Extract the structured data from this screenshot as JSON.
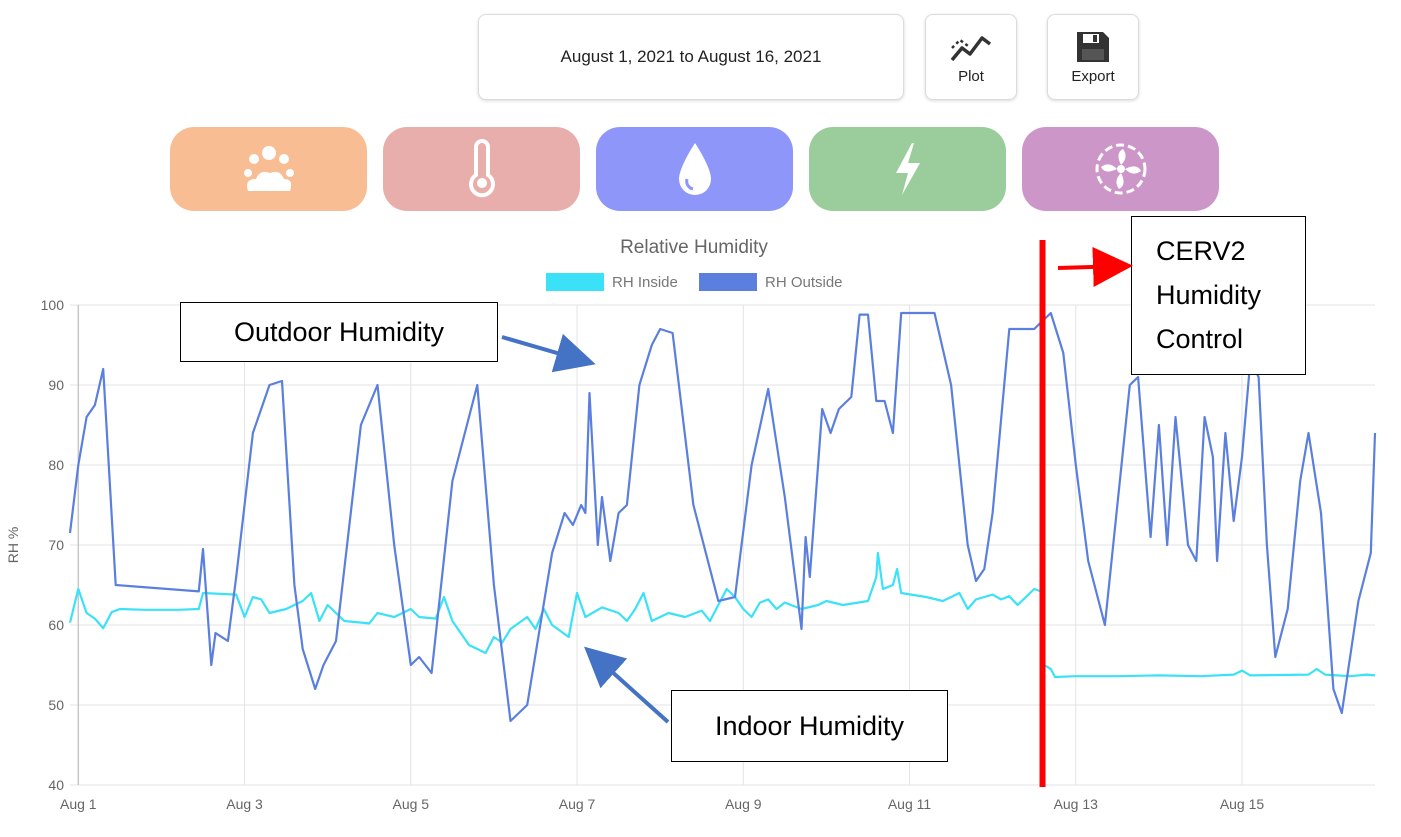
{
  "toolbar": {
    "date_range": "August 1, 2021 to August 16, 2021",
    "plot_label": "Plot",
    "export_label": "Export",
    "plot_icon": "line-chart-icon",
    "export_icon": "floppy-disk-icon"
  },
  "categories": [
    {
      "name": "weather",
      "icon": "weather-icon",
      "color": "#f9bd93"
    },
    {
      "name": "temperature",
      "icon": "thermometer-icon",
      "color": "#e8aeab"
    },
    {
      "name": "humidity",
      "icon": "water-drop-icon",
      "color": "#8e96f9"
    },
    {
      "name": "energy",
      "icon": "lightning-icon",
      "color": "#9acd9b"
    },
    {
      "name": "ventilation",
      "icon": "fan-icon",
      "color": "#cd96c8"
    }
  ],
  "annotations": {
    "outdoor": "Outdoor Humidity",
    "indoor": "Indoor Humidity",
    "cerv_line1": "CERV2",
    "cerv_line2": "Humidity",
    "cerv_line3": "Control",
    "arrow_color": "#4472c4",
    "marker_color": "#ff0000",
    "marker_x": 12.6
  },
  "chart_data": {
    "type": "line",
    "title": "Relative Humidity",
    "ylabel": "RH %",
    "xlabel": "",
    "ylim": [
      40,
      100
    ],
    "yticks": [
      40,
      50,
      60,
      70,
      80,
      90,
      100
    ],
    "xlim": [
      0.9,
      16.6
    ],
    "xticks": [
      {
        "x": 1,
        "label": "Aug 1"
      },
      {
        "x": 3,
        "label": "Aug 3"
      },
      {
        "x": 5,
        "label": "Aug 5"
      },
      {
        "x": 7,
        "label": "Aug 7"
      },
      {
        "x": 9,
        "label": "Aug 9"
      },
      {
        "x": 11,
        "label": "Aug 11"
      },
      {
        "x": 13,
        "label": "Aug 13"
      },
      {
        "x": 15,
        "label": "Aug 15"
      }
    ],
    "grid": true,
    "legend_position": "top-center",
    "series": [
      {
        "name": "RH Inside",
        "color": "#3be2f7",
        "points": [
          [
            0.9,
            60.3
          ],
          [
            1.0,
            64.5
          ],
          [
            1.1,
            61.5
          ],
          [
            1.2,
            60.8
          ],
          [
            1.3,
            59.6
          ],
          [
            1.4,
            61.6
          ],
          [
            1.5,
            62.0
          ],
          [
            1.8,
            61.9
          ],
          [
            2.2,
            61.9
          ],
          [
            2.45,
            62.0
          ],
          [
            2.5,
            64.0
          ],
          [
            2.9,
            63.8
          ],
          [
            3.0,
            61.0
          ],
          [
            3.1,
            63.5
          ],
          [
            3.2,
            63.2
          ],
          [
            3.3,
            61.5
          ],
          [
            3.5,
            62.0
          ],
          [
            3.7,
            63.0
          ],
          [
            3.8,
            64.0
          ],
          [
            3.9,
            60.5
          ],
          [
            4.0,
            62.5
          ],
          [
            4.2,
            60.5
          ],
          [
            4.5,
            60.2
          ],
          [
            4.6,
            61.5
          ],
          [
            4.8,
            61.0
          ],
          [
            5.0,
            62.0
          ],
          [
            5.1,
            61.0
          ],
          [
            5.3,
            60.8
          ],
          [
            5.4,
            63.5
          ],
          [
            5.5,
            60.5
          ],
          [
            5.7,
            57.5
          ],
          [
            5.9,
            56.5
          ],
          [
            6.0,
            58.5
          ],
          [
            6.1,
            57.8
          ],
          [
            6.2,
            59.5
          ],
          [
            6.4,
            61.0
          ],
          [
            6.5,
            59.5
          ],
          [
            6.6,
            62.0
          ],
          [
            6.7,
            60.0
          ],
          [
            6.9,
            58.5
          ],
          [
            7.0,
            64.0
          ],
          [
            7.1,
            61.0
          ],
          [
            7.3,
            62.2
          ],
          [
            7.5,
            61.5
          ],
          [
            7.6,
            60.5
          ],
          [
            7.7,
            62.0
          ],
          [
            7.8,
            64.0
          ],
          [
            7.9,
            60.5
          ],
          [
            8.1,
            61.5
          ],
          [
            8.3,
            61.0
          ],
          [
            8.5,
            61.8
          ],
          [
            8.6,
            60.5
          ],
          [
            8.7,
            62.5
          ],
          [
            8.8,
            64.5
          ],
          [
            8.9,
            63.5
          ],
          [
            9.0,
            62.0
          ],
          [
            9.1,
            61.0
          ],
          [
            9.2,
            62.8
          ],
          [
            9.3,
            63.2
          ],
          [
            9.4,
            62.0
          ],
          [
            9.5,
            62.8
          ],
          [
            9.7,
            62.0
          ],
          [
            9.9,
            62.5
          ],
          [
            10.0,
            63.0
          ],
          [
            10.2,
            62.5
          ],
          [
            10.5,
            63.0
          ],
          [
            10.6,
            66.0
          ],
          [
            10.62,
            69.0
          ],
          [
            10.68,
            64.5
          ],
          [
            10.8,
            65.0
          ],
          [
            10.85,
            67.0
          ],
          [
            10.9,
            64.0
          ],
          [
            11.2,
            63.5
          ],
          [
            11.4,
            63.0
          ],
          [
            11.6,
            64.0
          ],
          [
            11.7,
            62.0
          ],
          [
            11.8,
            63.2
          ],
          [
            11.9,
            63.5
          ],
          [
            12.0,
            63.8
          ],
          [
            12.1,
            63.2
          ],
          [
            12.2,
            63.6
          ],
          [
            12.3,
            62.5
          ],
          [
            12.4,
            63.5
          ],
          [
            12.5,
            64.5
          ],
          [
            12.58,
            64.2
          ],
          [
            12.62,
            55.0
          ],
          [
            12.7,
            54.5
          ],
          [
            12.75,
            53.5
          ],
          [
            13.0,
            53.6
          ],
          [
            13.5,
            53.6
          ],
          [
            14.0,
            53.7
          ],
          [
            14.5,
            53.6
          ],
          [
            14.9,
            53.8
          ],
          [
            15.0,
            54.3
          ],
          [
            15.1,
            53.7
          ],
          [
            15.8,
            53.8
          ],
          [
            15.9,
            54.5
          ],
          [
            16.0,
            53.8
          ],
          [
            16.3,
            53.6
          ],
          [
            16.5,
            53.8
          ],
          [
            16.6,
            53.7
          ]
        ]
      },
      {
        "name": "RH Outside",
        "color": "#5a7fde",
        "points": [
          [
            0.9,
            71.5
          ],
          [
            1.0,
            80.0
          ],
          [
            1.1,
            86.0
          ],
          [
            1.2,
            87.5
          ],
          [
            1.3,
            92.0
          ],
          [
            1.45,
            65.0
          ],
          [
            2.45,
            64.2
          ],
          [
            2.5,
            69.5
          ],
          [
            2.6,
            55.0
          ],
          [
            2.65,
            59.0
          ],
          [
            2.8,
            58.0
          ],
          [
            2.9,
            66.0
          ],
          [
            3.1,
            84.0
          ],
          [
            3.3,
            90.0
          ],
          [
            3.45,
            90.5
          ],
          [
            3.6,
            65.0
          ],
          [
            3.7,
            57.0
          ],
          [
            3.85,
            52.0
          ],
          [
            3.95,
            55.0
          ],
          [
            4.1,
            58.0
          ],
          [
            4.4,
            85.0
          ],
          [
            4.6,
            90.0
          ],
          [
            4.8,
            70.0
          ],
          [
            5.0,
            55.0
          ],
          [
            5.1,
            56.0
          ],
          [
            5.25,
            54.0
          ],
          [
            5.5,
            78.0
          ],
          [
            5.8,
            90.0
          ],
          [
            6.0,
            65.0
          ],
          [
            6.2,
            48.0
          ],
          [
            6.4,
            50.0
          ],
          [
            6.7,
            69.0
          ],
          [
            6.85,
            74.0
          ],
          [
            6.95,
            72.5
          ],
          [
            7.05,
            75.0
          ],
          [
            7.1,
            74.0
          ],
          [
            7.15,
            89.0
          ],
          [
            7.25,
            70.0
          ],
          [
            7.3,
            76.0
          ],
          [
            7.4,
            68.0
          ],
          [
            7.5,
            74.0
          ],
          [
            7.6,
            75.0
          ],
          [
            7.75,
            90.0
          ],
          [
            7.9,
            95.0
          ],
          [
            8.0,
            97.0
          ],
          [
            8.15,
            96.5
          ],
          [
            8.4,
            75.0
          ],
          [
            8.7,
            63.0
          ],
          [
            8.9,
            63.5
          ],
          [
            9.1,
            80.0
          ],
          [
            9.3,
            89.5
          ],
          [
            9.5,
            76.0
          ],
          [
            9.7,
            59.5
          ],
          [
            9.75,
            71.0
          ],
          [
            9.8,
            66.0
          ],
          [
            9.95,
            87.0
          ],
          [
            10.05,
            84.0
          ],
          [
            10.15,
            87.0
          ],
          [
            10.3,
            88.5
          ],
          [
            10.4,
            98.8
          ],
          [
            10.5,
            98.8
          ],
          [
            10.6,
            88.0
          ],
          [
            10.7,
            88.0
          ],
          [
            10.8,
            84.0
          ],
          [
            10.9,
            99.0
          ],
          [
            11.3,
            99.0
          ],
          [
            11.5,
            90.0
          ],
          [
            11.7,
            70.0
          ],
          [
            11.8,
            65.5
          ],
          [
            11.9,
            67.0
          ],
          [
            12.0,
            74.0
          ],
          [
            12.2,
            97.0
          ],
          [
            12.5,
            97.0
          ],
          [
            12.7,
            99.0
          ],
          [
            12.85,
            94.0
          ],
          [
            13.0,
            80.0
          ],
          [
            13.15,
            68.0
          ],
          [
            13.35,
            60.0
          ],
          [
            13.55,
            80.0
          ],
          [
            13.65,
            90.0
          ],
          [
            13.75,
            91.0
          ],
          [
            13.9,
            71.0
          ],
          [
            14.0,
            85.0
          ],
          [
            14.1,
            70.0
          ],
          [
            14.2,
            86.0
          ],
          [
            14.35,
            70.0
          ],
          [
            14.45,
            68.0
          ],
          [
            14.55,
            86.0
          ],
          [
            14.65,
            81.0
          ],
          [
            14.7,
            68.0
          ],
          [
            14.8,
            84.0
          ],
          [
            14.9,
            73.0
          ],
          [
            15.0,
            81.0
          ],
          [
            15.1,
            93.0
          ],
          [
            15.2,
            91.0
          ],
          [
            15.3,
            70.0
          ],
          [
            15.4,
            56.0
          ],
          [
            15.55,
            62.0
          ],
          [
            15.7,
            78.0
          ],
          [
            15.8,
            84.0
          ],
          [
            15.95,
            74.0
          ],
          [
            16.1,
            52.0
          ],
          [
            16.2,
            49.0
          ],
          [
            16.4,
            63.0
          ],
          [
            16.55,
            69.0
          ],
          [
            16.6,
            84.0
          ]
        ]
      }
    ]
  }
}
